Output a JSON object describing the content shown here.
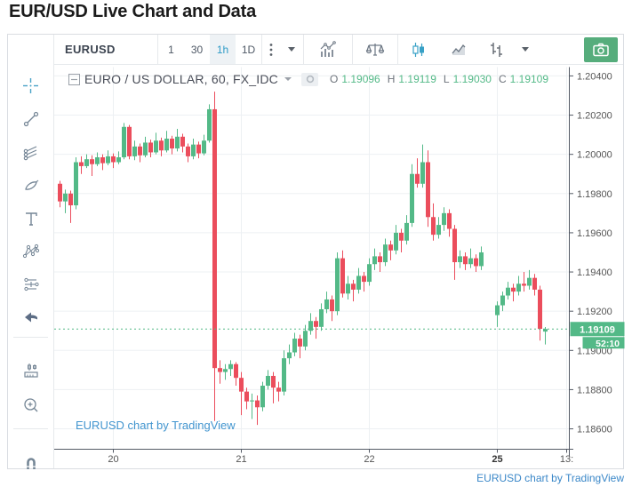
{
  "page": {
    "title": "EUR/USD Live Chart and Data",
    "chart_attribution": "EURUSD chart by TradingView",
    "footer_attribution": "EURUSD chart by TradingView"
  },
  "toolbar": {
    "symbol": "EURUSD",
    "intervals": [
      {
        "label": "1",
        "active": false
      },
      {
        "label": "30",
        "active": false
      },
      {
        "label": "1h",
        "active": true
      },
      {
        "label": "1D",
        "active": false
      }
    ],
    "icons": [
      "kebab-menu",
      "interval-dropdown-caret",
      "indicators",
      "compare",
      "candles-style",
      "line-style",
      "bars-style",
      "style-dropdown-caret",
      "camera-snapshot"
    ]
  },
  "sidebar": {
    "tools": [
      "crosshair",
      "trend-line",
      "gann-fibonacci",
      "brush",
      "text",
      "xabcd-pattern",
      "forecast",
      "undo",
      "measure",
      "zoom-in",
      "magnet"
    ]
  },
  "legend": {
    "title": "EURO / US DOLLAR, 60, FX_IDC",
    "ohlc": {
      "o_label": "O",
      "o": "1.19096",
      "h_label": "H",
      "h": "1.19119",
      "l_label": "L",
      "l": "1.19030",
      "c_label": "C",
      "c": "1.19109"
    }
  },
  "colors": {
    "up": "#53b987",
    "down": "#eb4d5c",
    "grid": "#edf0f3",
    "axis_line": "#555b66",
    "axis_text": "#555555",
    "last_price_bg": "#53b987",
    "active_blue": "#2f9bc7",
    "icon_gray": "#758696",
    "camera_bg": "#56ad7c",
    "link_blue": "#4295cf"
  },
  "chart_data": {
    "type": "candlestick",
    "title": "EURO / US DOLLAR, 60, FX_IDC",
    "interval_minutes": 60,
    "ylim": [
      1.18496,
      1.20445
    ],
    "grid": true,
    "y_ticks": [
      {
        "value": 1.204,
        "label": "1.20400"
      },
      {
        "value": 1.202,
        "label": "1.20200"
      },
      {
        "value": 1.2,
        "label": "1.20000"
      },
      {
        "value": 1.198,
        "label": "1.19800"
      },
      {
        "value": 1.196,
        "label": "1.19600"
      },
      {
        "value": 1.194,
        "label": "1.19400"
      },
      {
        "value": 1.192,
        "label": "1.19200"
      },
      {
        "value": 1.19,
        "label": "1.19000"
      },
      {
        "value": 1.188,
        "label": "1.18800"
      },
      {
        "value": 1.186,
        "label": "1.18600"
      }
    ],
    "x_ticks": [
      {
        "slot": 10,
        "label": "20",
        "bold": false
      },
      {
        "slot": 34,
        "label": "21",
        "bold": false
      },
      {
        "slot": 58,
        "label": "22",
        "bold": false
      },
      {
        "slot": 82,
        "label": "25",
        "bold": true
      },
      {
        "slot": 95,
        "label": "13:",
        "bold": false
      }
    ],
    "last_price": {
      "value": 1.19109,
      "label": "1.19109",
      "countdown": "52:10"
    },
    "candles_ohlc": [
      [
        1.1985,
        1.19865,
        1.1973,
        1.1976
      ],
      [
        1.1976,
        1.1982,
        1.197,
        1.198
      ],
      [
        1.198,
        1.19815,
        1.1965,
        1.1974
      ],
      [
        1.1974,
        1.19985,
        1.1972,
        1.1996
      ],
      [
        1.1996,
        1.1999,
        1.199,
        1.1994
      ],
      [
        1.1994,
        1.2,
        1.1993,
        1.19975
      ],
      [
        1.19975,
        1.19995,
        1.1989,
        1.1995
      ],
      [
        1.1995,
        1.2001,
        1.1994,
        1.19985
      ],
      [
        1.19985,
        1.2,
        1.1992,
        1.19955
      ],
      [
        1.19955,
        1.2002,
        1.19945,
        1.1999
      ],
      [
        1.1999,
        1.20005,
        1.1993,
        1.1996
      ],
      [
        1.1996,
        1.20015,
        1.1995,
        1.19985
      ],
      [
        1.19985,
        1.2016,
        1.19975,
        1.2014
      ],
      [
        1.2014,
        1.2015,
        1.19975,
        1.1999
      ],
      [
        1.1999,
        1.2007,
        1.1997,
        1.2004
      ],
      [
        1.2004,
        1.20055,
        1.1996,
        1.19995
      ],
      [
        1.19995,
        1.2009,
        1.19985,
        1.2006
      ],
      [
        1.2006,
        1.20075,
        1.19985,
        1.2001
      ],
      [
        1.2001,
        1.2011,
        1.2,
        1.2007
      ],
      [
        1.2007,
        1.20085,
        1.1999,
        1.2002
      ],
      [
        1.2002,
        1.2012,
        1.2001,
        1.2008
      ],
      [
        1.2008,
        1.20095,
        1.2,
        1.2003
      ],
      [
        1.2003,
        1.2013,
        1.20015,
        1.2009
      ],
      [
        1.2009,
        1.20105,
        1.2001,
        1.2004
      ],
      [
        1.2004,
        1.20055,
        1.1996,
        1.1999
      ],
      [
        1.1999,
        1.2008,
        1.19975,
        1.2005
      ],
      [
        1.2005,
        1.20065,
        1.1998,
        1.20005
      ],
      [
        1.20005,
        1.201,
        1.19995,
        1.2007
      ],
      [
        1.2007,
        1.20255,
        1.2006,
        1.2023
      ],
      [
        1.2023,
        1.2032,
        1.1864,
        1.1891
      ],
      [
        1.1891,
        1.1895,
        1.1883,
        1.1889
      ],
      [
        1.1889,
        1.1893,
        1.1885,
        1.18905
      ],
      [
        1.18905,
        1.1895,
        1.1887,
        1.1893
      ],
      [
        1.1893,
        1.1894,
        1.1882,
        1.1886
      ],
      [
        1.1886,
        1.1889,
        1.1867,
        1.1879
      ],
      [
        1.1879,
        1.1881,
        1.187,
        1.1874
      ],
      [
        1.1874,
        1.1878,
        1.1865,
        1.18745
      ],
      [
        1.18745,
        1.1877,
        1.1862,
        1.1871
      ],
      [
        1.1871,
        1.1884,
        1.1869,
        1.1882
      ],
      [
        1.1882,
        1.189,
        1.188,
        1.1887
      ],
      [
        1.1887,
        1.1889,
        1.1873,
        1.1881
      ],
      [
        1.1881,
        1.1884,
        1.1874,
        1.1879
      ],
      [
        1.1879,
        1.19,
        1.1877,
        1.1896
      ],
      [
        1.1896,
        1.1903,
        1.1893,
        1.1899
      ],
      [
        1.1899,
        1.1909,
        1.1897,
        1.1906
      ],
      [
        1.1906,
        1.1908,
        1.1896,
        1.1902
      ],
      [
        1.1902,
        1.1913,
        1.19,
        1.191
      ],
      [
        1.191,
        1.1919,
        1.1908,
        1.1915
      ],
      [
        1.1915,
        1.1917,
        1.1906,
        1.1912
      ],
      [
        1.1912,
        1.1924,
        1.191,
        1.1921
      ],
      [
        1.1921,
        1.193,
        1.1919,
        1.1926
      ],
      [
        1.1926,
        1.1928,
        1.1915,
        1.192
      ],
      [
        1.192,
        1.195,
        1.1918,
        1.1947
      ],
      [
        1.1947,
        1.1951,
        1.1927,
        1.1929
      ],
      [
        1.1929,
        1.1938,
        1.1926,
        1.1934
      ],
      [
        1.1934,
        1.1936,
        1.1925,
        1.1931
      ],
      [
        1.1931,
        1.1942,
        1.1929,
        1.1938
      ],
      [
        1.1938,
        1.194,
        1.193,
        1.1935
      ],
      [
        1.1935,
        1.1947,
        1.1933,
        1.1944
      ],
      [
        1.1944,
        1.1952,
        1.1941,
        1.1948
      ],
      [
        1.1948,
        1.195,
        1.194,
        1.1945
      ],
      [
        1.1945,
        1.1957,
        1.1943,
        1.1954
      ],
      [
        1.1954,
        1.1956,
        1.1946,
        1.1951
      ],
      [
        1.1951,
        1.1964,
        1.1949,
        1.196
      ],
      [
        1.196,
        1.1962,
        1.195,
        1.1956
      ],
      [
        1.1956,
        1.1969,
        1.1954,
        1.1965
      ],
      [
        1.1965,
        1.1995,
        1.1963,
        1.199
      ],
      [
        1.199,
        1.1998,
        1.1983,
        1.1985
      ],
      [
        1.1985,
        1.2005,
        1.1983,
        1.1996
      ],
      [
        1.1996,
        1.2002,
        1.1963,
        1.1968
      ],
      [
        1.1968,
        1.1975,
        1.1956,
        1.1959
      ],
      [
        1.1959,
        1.1968,
        1.1957,
        1.1964
      ],
      [
        1.1964,
        1.1973,
        1.1961,
        1.197
      ],
      [
        1.197,
        1.1972,
        1.1958,
        1.1962
      ],
      [
        1.1962,
        1.1964,
        1.1936,
        1.1945
      ],
      [
        1.1945,
        1.1951,
        1.1942,
        1.1948
      ],
      [
        1.1948,
        1.195,
        1.1941,
        1.1944
      ],
      [
        1.1944,
        1.1952,
        1.1942,
        1.1947
      ],
      [
        1.1947,
        1.1949,
        1.194,
        1.1943
      ],
      [
        1.1943,
        1.1953,
        1.1941,
        1.195
      ],
      null,
      null,
      [
        1.1918,
        1.1925,
        1.1912,
        1.1923
      ],
      [
        1.1923,
        1.193,
        1.192,
        1.1928
      ],
      [
        1.1928,
        1.1935,
        1.1926,
        1.1932
      ],
      [
        1.1932,
        1.1934,
        1.1925,
        1.193
      ],
      [
        1.193,
        1.1938,
        1.1928,
        1.1934
      ],
      [
        1.1934,
        1.194,
        1.193,
        1.1933
      ],
      [
        1.1933,
        1.1941,
        1.1931,
        1.1937
      ],
      [
        1.1937,
        1.1939,
        1.1928,
        1.1931
      ],
      [
        1.1931,
        1.1933,
        1.1905,
        1.1911
      ],
      [
        1.19096,
        1.19119,
        1.1903,
        1.19109
      ]
    ]
  }
}
